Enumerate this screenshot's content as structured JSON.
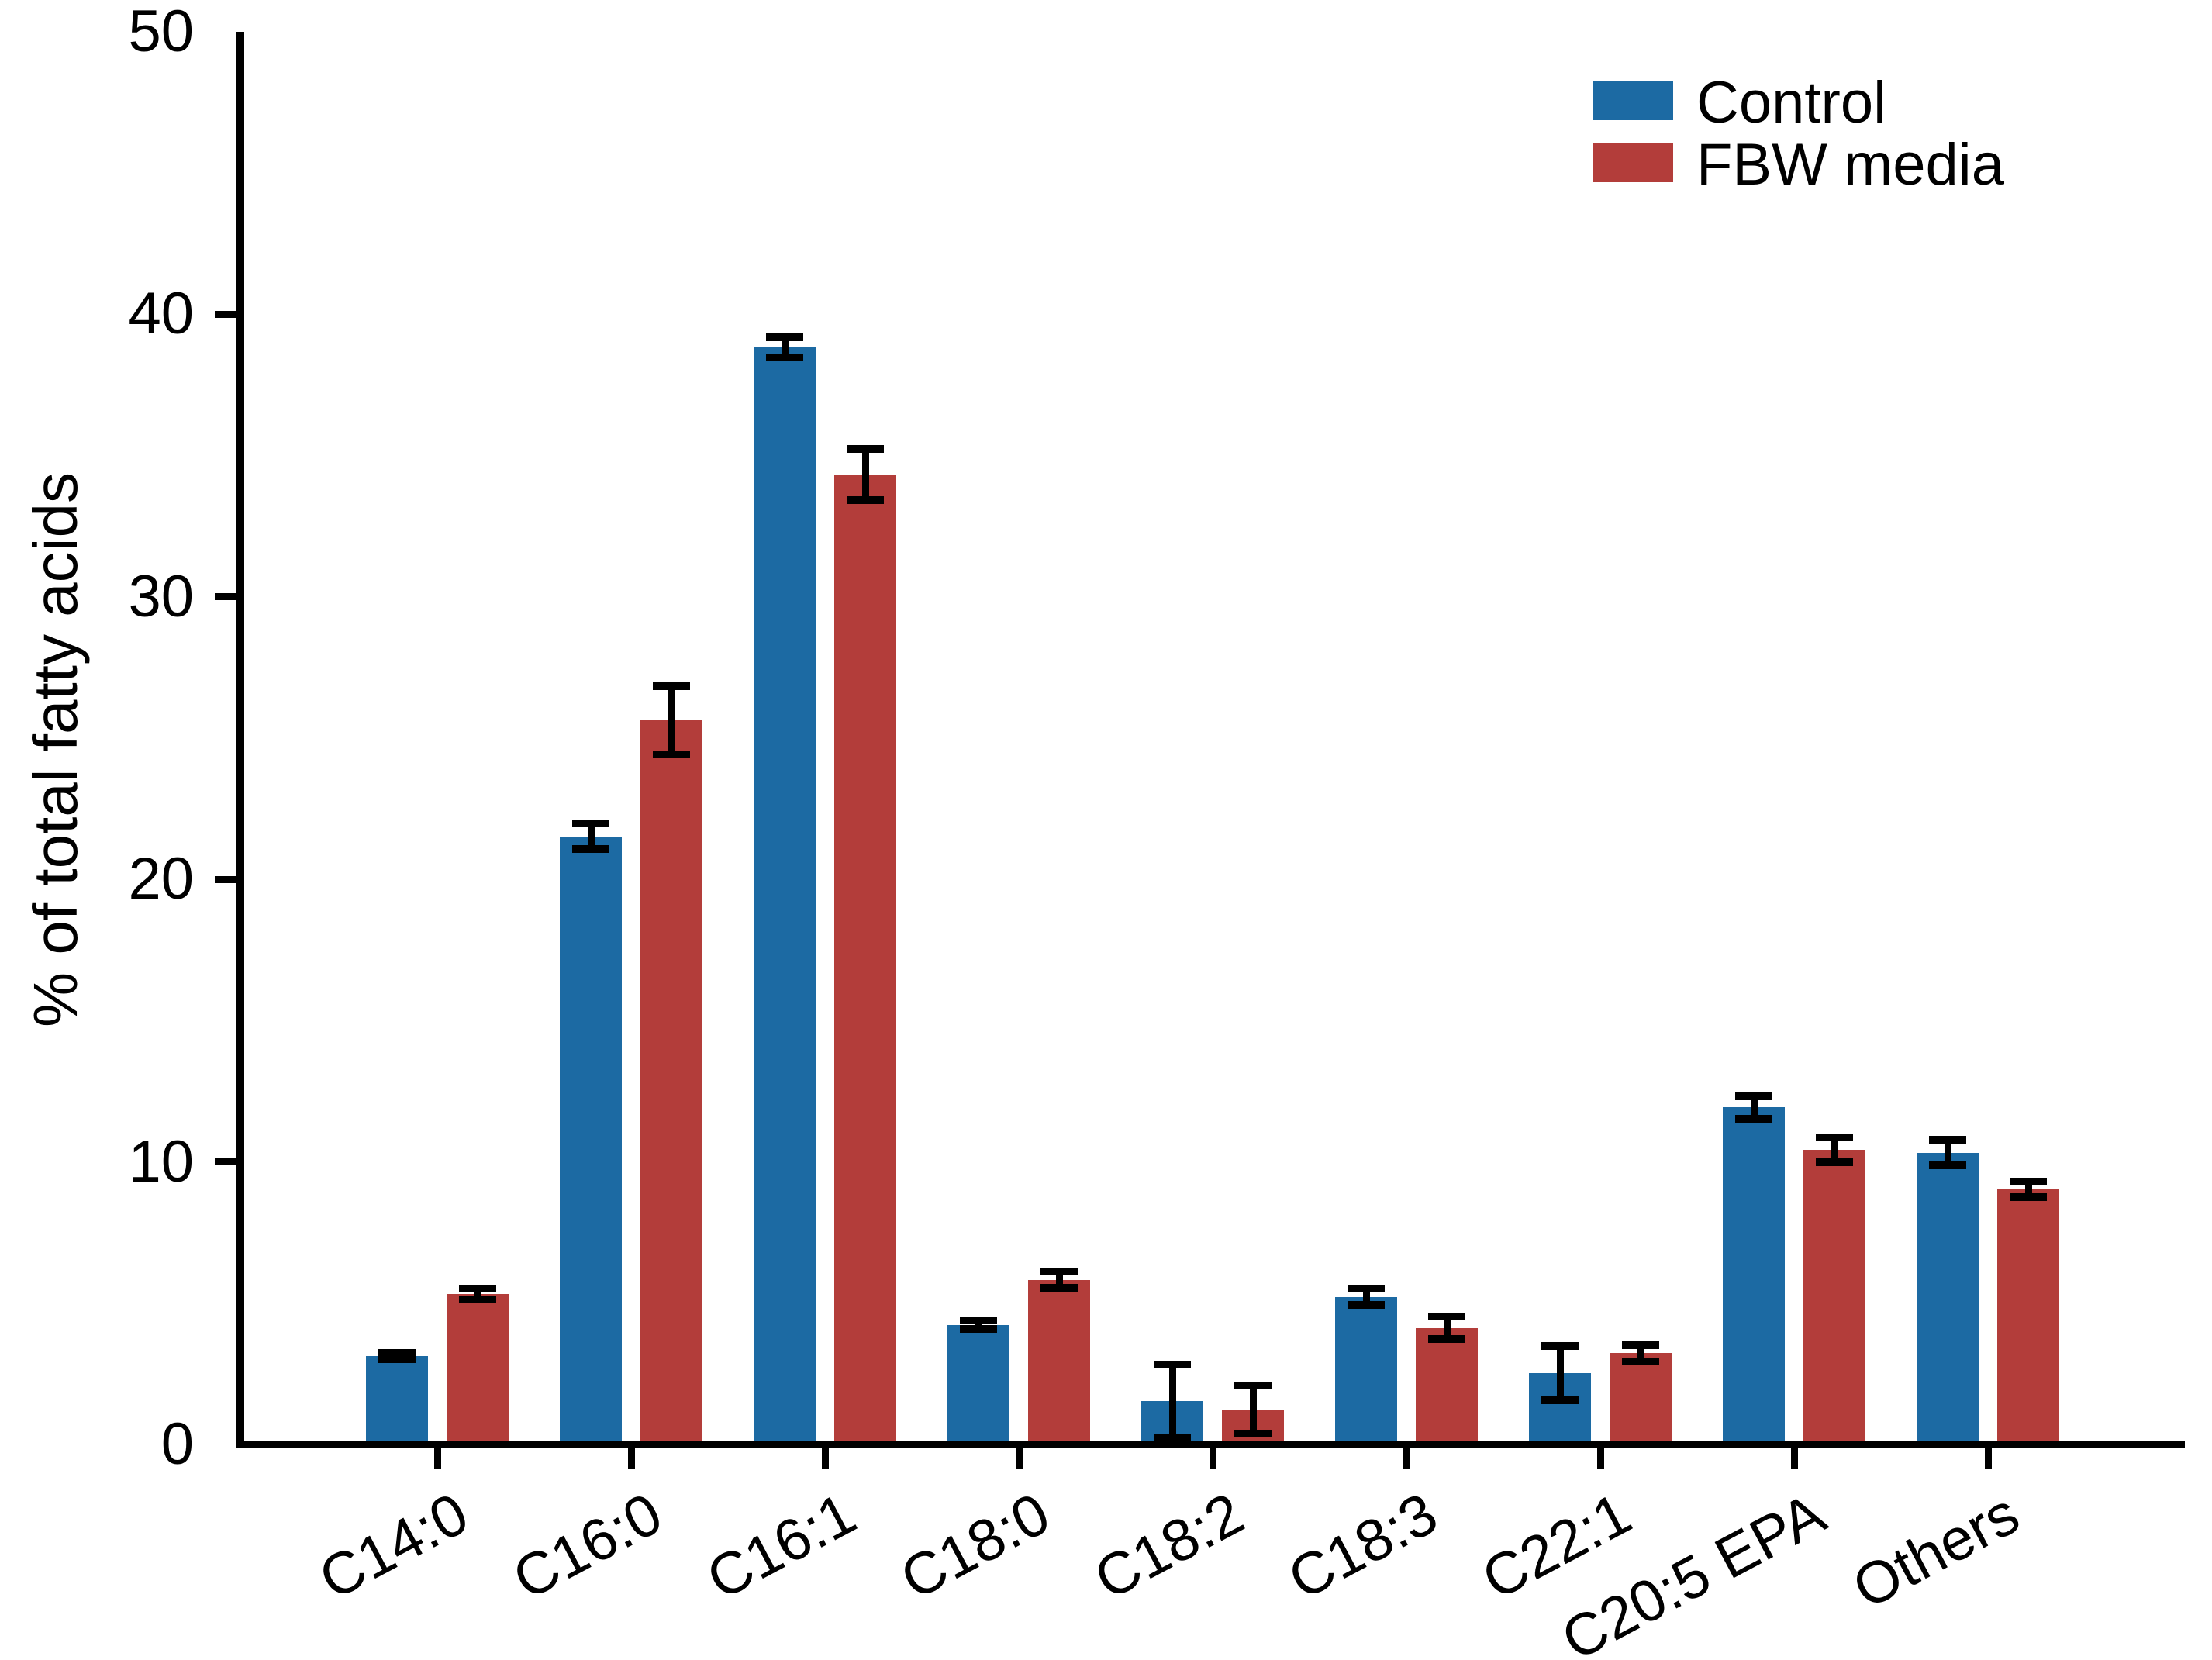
{
  "figure": {
    "background": "#ffffff",
    "text_color": "#000000"
  },
  "chart_data": {
    "type": "bar",
    "title": "",
    "xlabel": "",
    "ylabel": "% of total fatty acids",
    "ylim": [
      0,
      50
    ],
    "yticks": [
      "0",
      "10",
      "20",
      "30",
      "40",
      "50"
    ],
    "ytick_values": [
      0,
      10,
      20,
      30,
      40,
      50
    ],
    "grid": false,
    "error_bars": "symmetric, capped",
    "legend_position": "top-right-inside",
    "categories": [
      "C14:0",
      "C16:0",
      "C16:1",
      "C18:0",
      "C18:2",
      "C18:3",
      "C22:1",
      "C20:5 EPA",
      "Others"
    ],
    "series": [
      {
        "name": "Control",
        "color": "#1C6AA3",
        "values": [
          3.1,
          21.5,
          38.8,
          4.2,
          1.5,
          5.2,
          2.5,
          11.9,
          10.3
        ],
        "errors": [
          0.12,
          0.45,
          0.35,
          0.15,
          1.3,
          0.3,
          0.95,
          0.4,
          0.45
        ]
      },
      {
        "name": "FBW media",
        "color": "#B33D3A",
        "values": [
          5.3,
          25.6,
          34.3,
          5.8,
          1.2,
          4.1,
          3.2,
          10.4,
          9.0
        ],
        "errors": [
          0.19,
          1.2,
          0.9,
          0.28,
          0.85,
          0.4,
          0.28,
          0.45,
          0.28
        ]
      }
    ]
  }
}
